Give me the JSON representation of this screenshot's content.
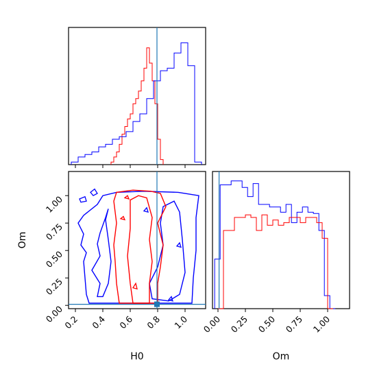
{
  "colors": {
    "red": "#ff0000",
    "blue": "#0000ff",
    "truth": "#1f77b4"
  },
  "chart_data": [
    {
      "panel": "H0 histogram (top-left)",
      "type": "histogram",
      "xlim": [
        0.15,
        1.15
      ],
      "truth_x": 0.795,
      "bins_x": [
        0.15,
        0.2,
        0.25,
        0.3,
        0.35,
        0.4,
        0.45,
        0.5,
        0.55,
        0.6,
        0.65,
        0.7,
        0.75,
        0.8,
        0.85,
        0.9,
        0.95,
        1.0,
        1.05,
        1.1
      ],
      "series": [
        {
          "color": "red",
          "edges": [
            0.46,
            0.48,
            0.5,
            0.52,
            0.54,
            0.56,
            0.58,
            0.6,
            0.62,
            0.64,
            0.66,
            0.68,
            0.7,
            0.72,
            0.74,
            0.76,
            0.78,
            0.8,
            0.82,
            0.84
          ],
          "counts": [
            0.02,
            0.06,
            0.1,
            0.16,
            0.24,
            0.3,
            0.36,
            0.4,
            0.48,
            0.52,
            0.58,
            0.66,
            0.76,
            0.92,
            0.8,
            0.66,
            0.48,
            0.2,
            0.04
          ]
        },
        {
          "color": "blue",
          "counts": [
            0.02,
            0.06,
            0.08,
            0.1,
            0.14,
            0.16,
            0.2,
            0.22,
            0.26,
            0.34,
            0.4,
            0.52,
            0.66,
            0.74,
            0.76,
            0.88,
            0.96,
            0.78,
            0.02
          ],
          "edge_start": 0.17,
          "edge_step": 0.05
        }
      ]
    },
    {
      "panel": "Om histogram (bottom-right)",
      "type": "histogram",
      "xlim": [
        -0.05,
        1.2
      ],
      "truth_x": 0.01,
      "series": [
        {
          "color": "blue",
          "edge_start": -0.03,
          "edge_step": 0.05,
          "counts": [
            0.38,
            0.95,
            0.95,
            0.98,
            0.98,
            0.93,
            0.86,
            0.96,
            0.8,
            0.8,
            0.78,
            0.78,
            0.74,
            0.8,
            0.66,
            0.74,
            0.78,
            0.74,
            0.73,
            0.6,
            0.1,
            0.0
          ]
        },
        {
          "color": "red",
          "edge_start": 0.0,
          "edge_step": 0.05,
          "counts": [
            0.0,
            0.6,
            0.6,
            0.7,
            0.7,
            0.72,
            0.7,
            0.6,
            0.72,
            0.64,
            0.68,
            0.64,
            0.66,
            0.7,
            0.7,
            0.66,
            0.7,
            0.7,
            0.66,
            0.54,
            0.0
          ]
        }
      ]
    },
    {
      "panel": "2D contours (bottom-left)",
      "type": "contour",
      "xlabel": "H0",
      "ylabel": "Om",
      "xlim": [
        0.15,
        1.15
      ],
      "ylim": [
        -0.03,
        1.22
      ],
      "xticks": [
        0.2,
        0.4,
        0.6,
        0.8,
        1.0
      ],
      "xtick_labels": [
        "0.2",
        "0.4",
        "0.6",
        "0.8",
        "1.0"
      ],
      "yticks": [
        0.0,
        0.25,
        0.5,
        0.75,
        1.0
      ],
      "ytick_labels": [
        "0.00",
        "0.25",
        "0.50",
        "0.75",
        "1.00"
      ],
      "truth_point": [
        0.795,
        0.01
      ]
    },
    {
      "panel": "Om histogram axis",
      "xlabel": "Om",
      "xticks": [
        0.0,
        0.25,
        0.5,
        0.75,
        1.0
      ],
      "xtick_labels": [
        "0.00",
        "0.25",
        "0.50",
        "0.75",
        "1.00"
      ]
    }
  ]
}
